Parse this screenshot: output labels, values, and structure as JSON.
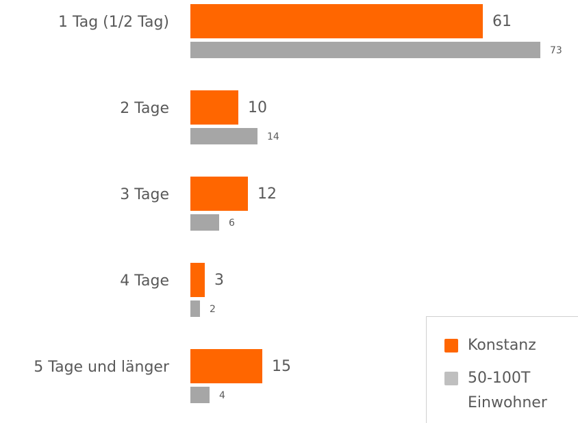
{
  "chart_data": {
    "type": "bar",
    "orientation": "horizontal",
    "categories": [
      "1 Tag (1/2 Tag)",
      "2 Tage",
      "3 Tage",
      "4 Tage",
      "5 Tage und länger"
    ],
    "series": [
      {
        "name": "Konstanz",
        "color": "#ff6600",
        "values": [
          61,
          10,
          12,
          3,
          15
        ]
      },
      {
        "name": "50-100T Einwohner",
        "color": "#a6a6a6",
        "values": [
          73,
          14,
          6,
          2,
          4
        ]
      }
    ],
    "legend": "bottom-right"
  }
}
